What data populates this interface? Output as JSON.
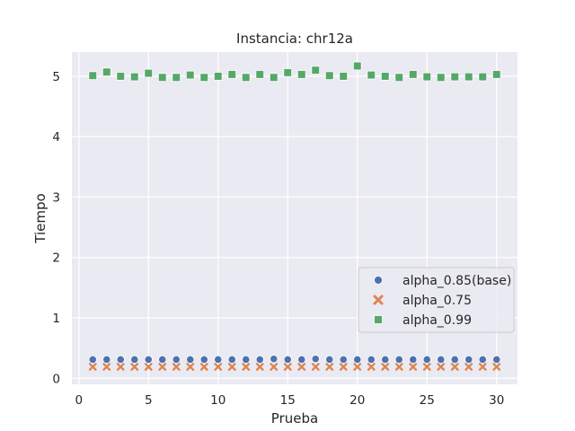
{
  "chart_data": {
    "type": "scatter",
    "title": "Instancia: chr12a",
    "xlabel": "Prueba",
    "ylabel": "Tiempo",
    "xlim": [
      -0.5,
      31.5
    ],
    "ylim": [
      -0.1,
      5.4
    ],
    "xticks": [
      0,
      5,
      10,
      15,
      20,
      25,
      30
    ],
    "yticks": [
      0,
      1,
      2,
      3,
      4,
      5
    ],
    "grid": true,
    "legend_position": "lower-right",
    "x": [
      1,
      2,
      3,
      4,
      5,
      6,
      7,
      8,
      9,
      10,
      11,
      12,
      13,
      14,
      15,
      16,
      17,
      18,
      19,
      20,
      21,
      22,
      23,
      24,
      25,
      26,
      27,
      28,
      29,
      30
    ],
    "series": [
      {
        "name": "alpha_0.85(base)",
        "marker": "circle",
        "color": "#4c72b0",
        "values": [
          0.31,
          0.31,
          0.31,
          0.31,
          0.31,
          0.31,
          0.31,
          0.31,
          0.31,
          0.31,
          0.31,
          0.31,
          0.31,
          0.32,
          0.31,
          0.31,
          0.32,
          0.31,
          0.31,
          0.31,
          0.31,
          0.31,
          0.31,
          0.31,
          0.31,
          0.31,
          0.31,
          0.31,
          0.31,
          0.31
        ]
      },
      {
        "name": "alpha_0.75",
        "marker": "x",
        "color": "#dd8452",
        "values": [
          0.19,
          0.19,
          0.19,
          0.19,
          0.19,
          0.19,
          0.19,
          0.19,
          0.19,
          0.19,
          0.19,
          0.19,
          0.19,
          0.19,
          0.19,
          0.19,
          0.19,
          0.19,
          0.19,
          0.19,
          0.19,
          0.19,
          0.19,
          0.19,
          0.19,
          0.19,
          0.19,
          0.19,
          0.19,
          0.19
        ]
      },
      {
        "name": "alpha_0.99",
        "marker": "square",
        "color": "#55a868",
        "values": [
          5.01,
          5.07,
          5.0,
          4.99,
          5.05,
          4.98,
          4.98,
          5.02,
          4.98,
          5.0,
          5.03,
          4.98,
          5.03,
          4.98,
          5.06,
          5.03,
          5.1,
          5.01,
          5.0,
          5.17,
          5.02,
          5.0,
          4.98,
          5.03,
          4.99,
          4.98,
          4.99,
          4.99,
          4.99,
          5.03
        ]
      }
    ]
  }
}
